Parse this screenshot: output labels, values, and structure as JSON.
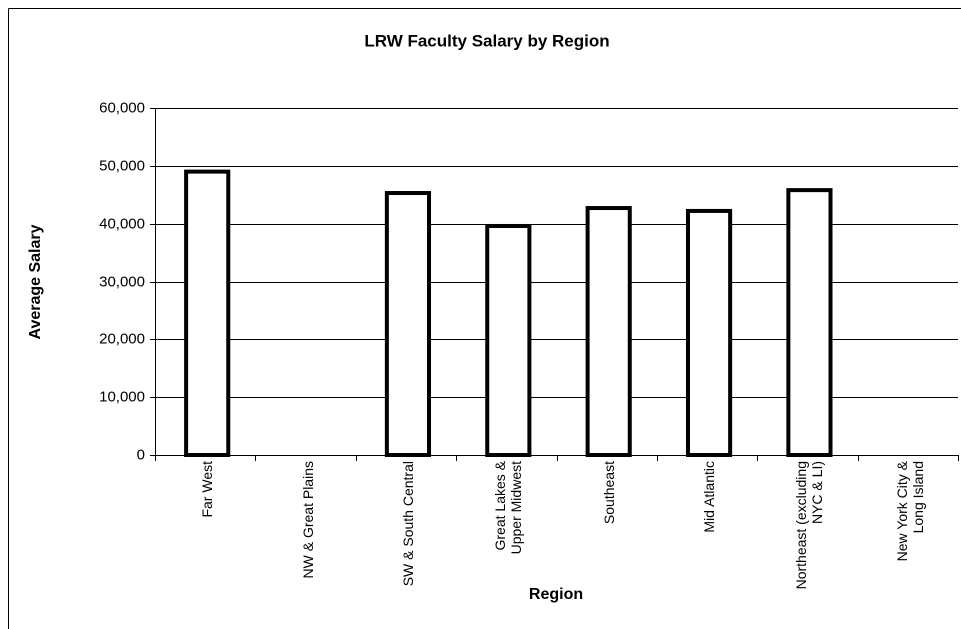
{
  "chart_data": {
    "type": "bar",
    "title": "LRW Faculty Salary by Region",
    "x_label": "Region",
    "y_label": "Average Salary",
    "categories": [
      "Far West",
      "NW & Great Plains",
      "SW & South Central",
      "Great Lakes & Upper Midwest",
      "Southeast",
      "Mid Atlantic",
      "Northeast (excluding NYC & LI)",
      "New York City & Long Island"
    ],
    "values": [
      49000,
      null,
      45300,
      39600,
      42700,
      42200,
      45800,
      null
    ],
    "color": "#ffffff",
    "ylim": [
      0,
      60000
    ],
    "yticks": [
      0,
      {
        "value": 10000,
        "label": "10,000"
      },
      {
        "value": 20000,
        "label": "20,000"
      },
      {
        "value": 30000,
        "label": "30,000"
      },
      {
        "value": 40000,
        "label": "40,000"
      },
      {
        "value": 50000,
        "label": "50,000"
      },
      {
        "value": 60000,
        "label": "60,000"
      }
    ],
    "grid": true
  }
}
